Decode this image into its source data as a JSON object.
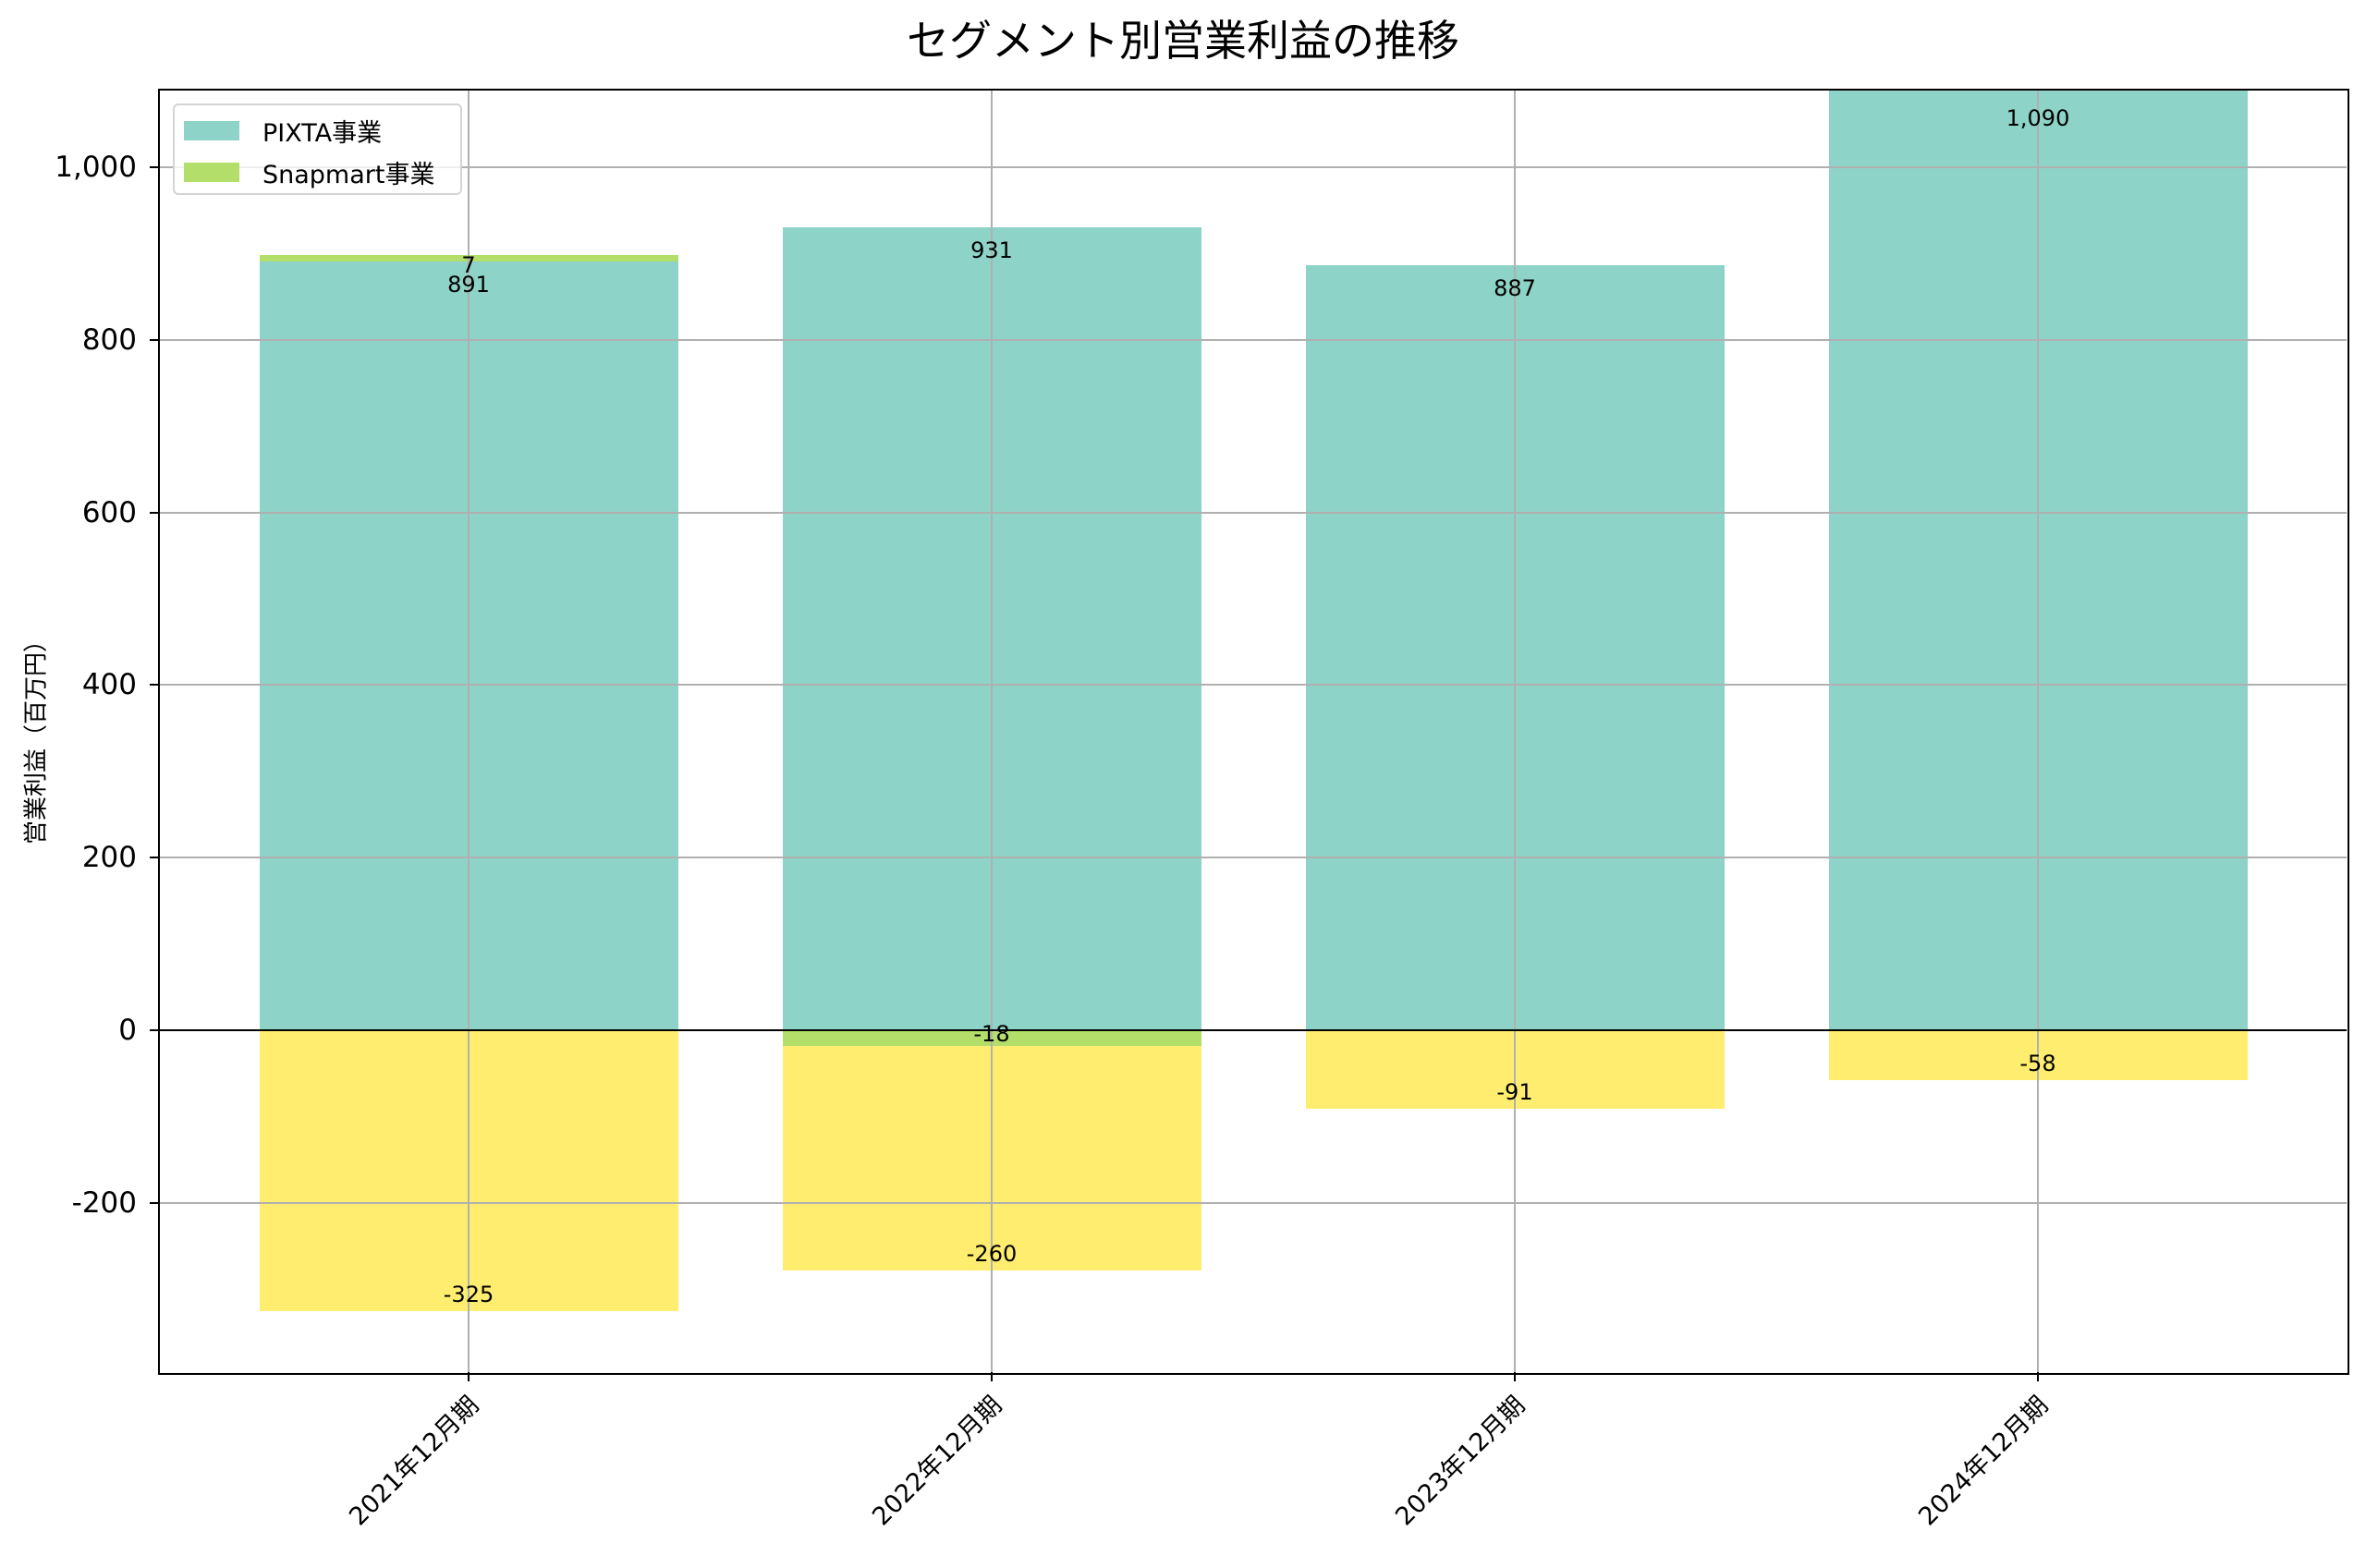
{
  "title": "セグメント別営業利益の推移",
  "y_axis_label": "営業利益（百万円）",
  "legend": [
    {
      "label": "PIXTA事業",
      "color": "#8dd3c7"
    },
    {
      "label": "Snapmart事業",
      "color": "#b3de69"
    }
  ],
  "colors": {
    "pixta": "#8dd3c7",
    "snapmart": "#b3de69",
    "other": "#ffed6f",
    "grid": "#b0b0b0",
    "zero_line": "#000000"
  },
  "y_ticks": [
    {
      "value": 1000,
      "label": "1,000"
    },
    {
      "value": 800,
      "label": "800"
    },
    {
      "value": 600,
      "label": "600"
    },
    {
      "value": 400,
      "label": "400"
    },
    {
      "value": 200,
      "label": "200"
    },
    {
      "value": 0,
      "label": "0"
    },
    {
      "value": -200,
      "label": "-200"
    }
  ],
  "chart_data": {
    "type": "bar",
    "stacked": true,
    "title": "セグメント別営業利益の推移",
    "xlabel": "",
    "ylabel": "営業利益（百万円）",
    "ylim": [
      -396,
      1090
    ],
    "grid": true,
    "legend_position": "upper left",
    "categories": [
      "2021年12月期",
      "2022年12月期",
      "2023年12月期",
      "2024年12月期"
    ],
    "series": [
      {
        "name": "PIXTA事業",
        "color": "#8dd3c7",
        "in_legend": true,
        "values": [
          891,
          931,
          887,
          1090
        ],
        "labels": [
          "891",
          "931",
          "887",
          "1,090"
        ]
      },
      {
        "name": "Snapmart事業",
        "color": "#b3de69",
        "in_legend": true,
        "values": [
          7,
          -18,
          0,
          0
        ],
        "labels": [
          "7",
          "-18",
          "",
          ""
        ]
      },
      {
        "name": "",
        "color": "#ffed6f",
        "in_legend": false,
        "values": [
          -325,
          -260,
          -91,
          -58
        ],
        "labels": [
          "-325",
          "-260",
          "-91",
          "-58"
        ]
      }
    ]
  }
}
